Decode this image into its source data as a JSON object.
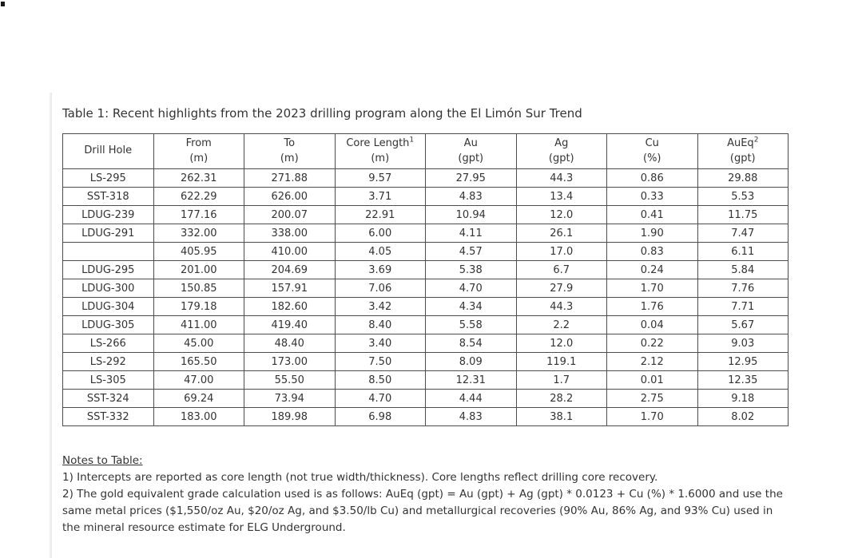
{
  "title": "Table 1: Recent highlights from the 2023 drilling program along the El Limón Sur Trend",
  "table": {
    "columns": [
      {
        "label": "Drill Hole",
        "sup": "",
        "unit": ""
      },
      {
        "label": "From",
        "sup": "",
        "unit": "(m)"
      },
      {
        "label": "To",
        "sup": "",
        "unit": "(m)"
      },
      {
        "label": "Core Length",
        "sup": "1",
        "unit": "(m)"
      },
      {
        "label": "Au",
        "sup": "",
        "unit": "(gpt)"
      },
      {
        "label": "Ag",
        "sup": "",
        "unit": "(gpt)"
      },
      {
        "label": "Cu",
        "sup": "",
        "unit": "(%)"
      },
      {
        "label": "AuEq",
        "sup": "2",
        "unit": "(gpt)"
      }
    ],
    "rows": [
      [
        "LS-295",
        "262.31",
        "271.88",
        "9.57",
        "27.95",
        "44.3",
        "0.86",
        "29.88"
      ],
      [
        "SST-318",
        "622.29",
        "626.00",
        "3.71",
        "4.83",
        "13.4",
        "0.33",
        "5.53"
      ],
      [
        "LDUG-239",
        "177.16",
        "200.07",
        "22.91",
        "10.94",
        "12.0",
        "0.41",
        "11.75"
      ],
      [
        "LDUG-291",
        "332.00",
        "338.00",
        "6.00",
        "4.11",
        "26.1",
        "1.90",
        "7.47"
      ],
      [
        "",
        "405.95",
        "410.00",
        "4.05",
        "4.57",
        "17.0",
        "0.83",
        "6.11"
      ],
      [
        "LDUG-295",
        "201.00",
        "204.69",
        "3.69",
        "5.38",
        "6.7",
        "0.24",
        "5.84"
      ],
      [
        "LDUG-300",
        "150.85",
        "157.91",
        "7.06",
        "4.70",
        "27.9",
        "1.70",
        "7.76"
      ],
      [
        "LDUG-304",
        "179.18",
        "182.60",
        "3.42",
        "4.34",
        "44.3",
        "1.76",
        "7.71"
      ],
      [
        "LDUG-305",
        "411.00",
        "419.40",
        "8.40",
        "5.58",
        "2.2",
        "0.04",
        "5.67"
      ],
      [
        "LS-266",
        "45.00",
        "48.40",
        "3.40",
        "8.54",
        "12.0",
        "0.22",
        "9.03"
      ],
      [
        "LS-292",
        "165.50",
        "173.00",
        "7.50",
        "8.09",
        "119.1",
        "2.12",
        "12.95"
      ],
      [
        "LS-305",
        "47.00",
        "55.50",
        "8.50",
        "12.31",
        "1.7",
        "0.01",
        "12.35"
      ],
      [
        "SST-324",
        "69.24",
        "73.94",
        "4.70",
        "4.44",
        "28.2",
        "2.75",
        "9.18"
      ],
      [
        "SST-332",
        "183.00",
        "189.98",
        "6.98",
        "4.83",
        "38.1",
        "1.70",
        "8.02"
      ]
    ]
  },
  "notes": {
    "heading": "Notes to Table:",
    "items": [
      "1) Intercepts are reported as core length (not true width/thickness). Core lengths reflect drilling core recovery.",
      "2) The gold equivalent grade calculation used is as follows: AuEq (gpt) = Au (gpt) + Ag (gpt) * 0.0123 + Cu (%) * 1.6000 and use the same metal prices ($1,550/oz Au, $20/oz Ag, and $3.50/lb Cu) and metallurgical recoveries (90% Au, 86% Ag, and 93% Cu) used in the mineral resource estimate for ELG Underground."
    ]
  },
  "colors": {
    "text": "#333333",
    "table_border": "#4d4d4d",
    "side_rule": "#e7e7e7",
    "background": "#ffffff"
  }
}
